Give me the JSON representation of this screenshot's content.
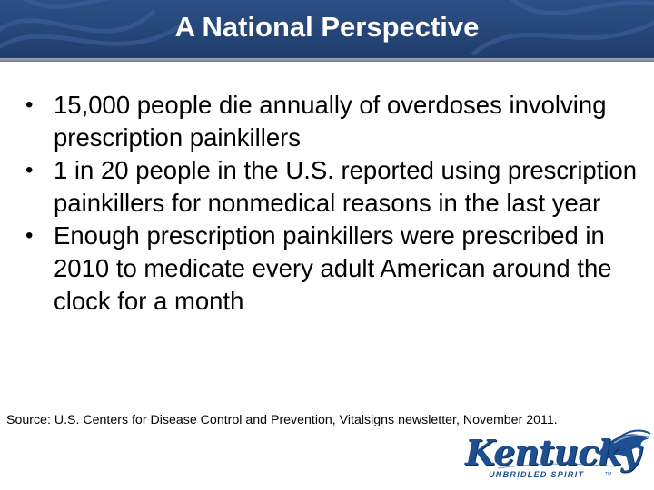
{
  "slide": {
    "title": "A National Perspective",
    "bullets": [
      "15,000 people die annually of overdoses involving prescription painkillers",
      "1 in 20 people in the U.S. reported using prescription painkillers for nonmedical reasons in the last year",
      "Enough prescription painkillers were prescribed in 2010 to medicate every adult American around the clock for a month"
    ],
    "bullet_glyph": "•",
    "source": "Source: U.S. Centers for Disease Control and Prevention, Vitalsigns newsletter, November 2011."
  },
  "logo": {
    "wordmark": "Kentucky",
    "tagline": "UNBRIDLED SPIRIT",
    "trademark": "TM",
    "icon": "horse-head-icon"
  },
  "colors": {
    "header_bg": "#264678",
    "header_text": "#ffffff",
    "rule": "#7f8ca1",
    "logo_blue": "#1d4f91"
  }
}
